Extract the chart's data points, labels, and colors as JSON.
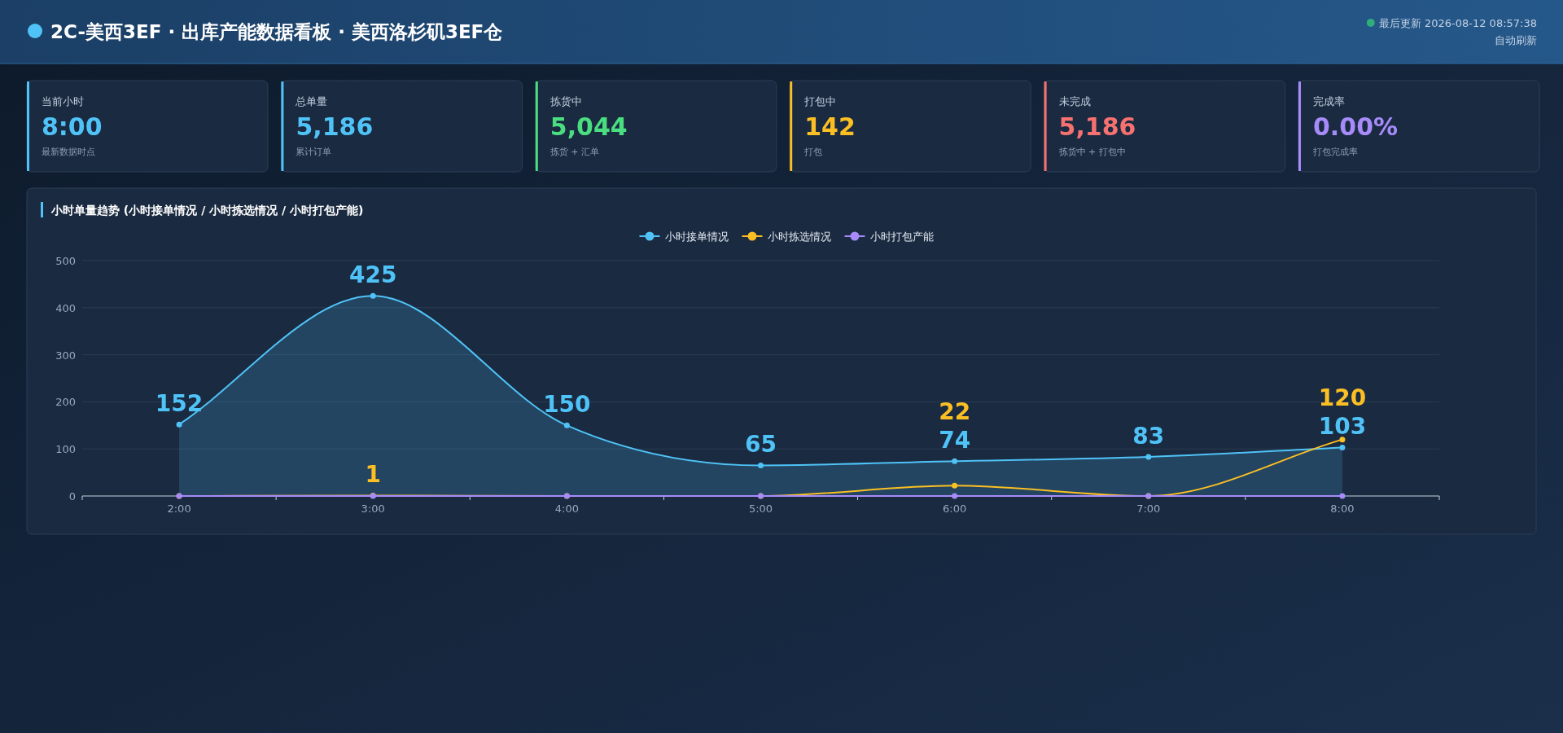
{
  "chart_data": [
    {
      "type": "other",
      "title": "2C-美西3EF · 出库产能数据看板 · 美西洛杉矶3EF仓",
      "annotations": [
        "最后更新 2026-08-12 08:57:38",
        "自动刷新"
      ]
    },
    {
      "type": "other",
      "title": "当前小时",
      "subtitle": "8:00",
      "annotations": [
        "最新数据时点"
      ],
      "color": "#4fc3f7"
    },
    {
      "type": "other",
      "title": "总单量",
      "subtitle": "5,186",
      "annotations": [
        "累计订单"
      ],
      "color": "#4fc3f7"
    },
    {
      "type": "other",
      "title": "拣货中",
      "subtitle": "5,044",
      "annotations": [
        "拣货 + 汇单"
      ],
      "color": "#4ade80"
    },
    {
      "type": "other",
      "title": "打包中",
      "subtitle": "142",
      "annotations": [
        "打包"
      ],
      "color": "#fbbf24"
    },
    {
      "type": "other",
      "title": "未完成",
      "subtitle": "5,186",
      "annotations": [
        "拣货中 + 打包中"
      ],
      "color": "#f87171"
    },
    {
      "type": "other",
      "title": "完成率",
      "subtitle": "0.00%",
      "annotations": [
        "打包完成率"
      ],
      "color": "#a78bfa"
    },
    {
      "type": "line",
      "title": "小时单量趋势 (小时接单情况 / 小时拣选情况 / 小时打包产能)",
      "categories": [
        "2:00",
        "3:00",
        "4:00",
        "5:00",
        "6:00",
        "7:00",
        "8:00"
      ],
      "series": [
        {
          "name": "小时接单情况",
          "type": "area",
          "color": "#4fc3f7",
          "values": [
            152,
            425,
            150,
            65,
            74,
            83,
            103
          ],
          "value_labels": [
            "152",
            "425",
            "150",
            "65",
            "74",
            "83",
            "103"
          ]
        },
        {
          "name": "小时拣选情况",
          "color": "#fbbf24",
          "values": [
            0,
            1,
            0,
            0,
            22,
            0,
            120
          ],
          "value_labels": [
            null,
            "1",
            null,
            null,
            "22",
            null,
            "120"
          ]
        },
        {
          "name": "小时打包产能",
          "color": "#a78bfa",
          "values": [
            0,
            0,
            0,
            0,
            0,
            0,
            0
          ]
        }
      ],
      "ylim": [
        0,
        500
      ],
      "yticks": [
        0,
        100,
        200,
        300,
        400,
        500
      ],
      "grid": "y",
      "legend": "top",
      "marker": "circle",
      "line_style": "solid"
    }
  ]
}
